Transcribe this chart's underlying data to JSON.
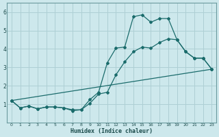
{
  "xlabel": "Humidex (Indice chaleur)",
  "bg_color": "#cde8ec",
  "grid_color": "#aecfd4",
  "line_color": "#1a6b6b",
  "xlim": [
    -0.5,
    23.5
  ],
  "ylim": [
    0,
    6.5
  ],
  "xticks": [
    0,
    1,
    2,
    3,
    4,
    5,
    6,
    7,
    8,
    9,
    10,
    11,
    12,
    13,
    14,
    15,
    16,
    17,
    18,
    19,
    20,
    21,
    22,
    23
  ],
  "yticks": [
    1,
    2,
    3,
    4,
    5,
    6
  ],
  "line1_x": [
    0,
    1,
    2,
    3,
    4,
    5,
    6,
    7,
    8,
    9,
    10,
    11,
    12,
    13,
    14,
    15,
    16,
    17,
    18,
    19,
    20,
    21,
    22,
    23
  ],
  "line1_y": [
    1.2,
    0.8,
    0.9,
    0.75,
    0.85,
    0.85,
    0.8,
    0.65,
    0.7,
    1.25,
    1.65,
    3.25,
    4.05,
    4.1,
    5.75,
    5.85,
    5.45,
    5.65,
    5.65,
    4.5,
    3.85,
    3.5,
    3.5,
    2.9
  ],
  "line2_x": [
    0,
    1,
    2,
    3,
    4,
    5,
    6,
    7,
    8,
    9,
    10,
    11,
    12,
    13,
    14,
    15,
    16,
    17,
    18,
    19,
    20,
    21,
    22,
    23
  ],
  "line2_y": [
    1.2,
    0.8,
    0.9,
    0.75,
    0.85,
    0.85,
    0.8,
    0.7,
    0.7,
    1.05,
    1.55,
    1.65,
    2.6,
    3.3,
    3.85,
    4.1,
    4.05,
    4.35,
    4.55,
    4.5,
    3.85,
    3.5,
    3.5,
    2.9
  ],
  "line3_x": [
    0,
    23
  ],
  "line3_y": [
    1.2,
    2.9
  ]
}
